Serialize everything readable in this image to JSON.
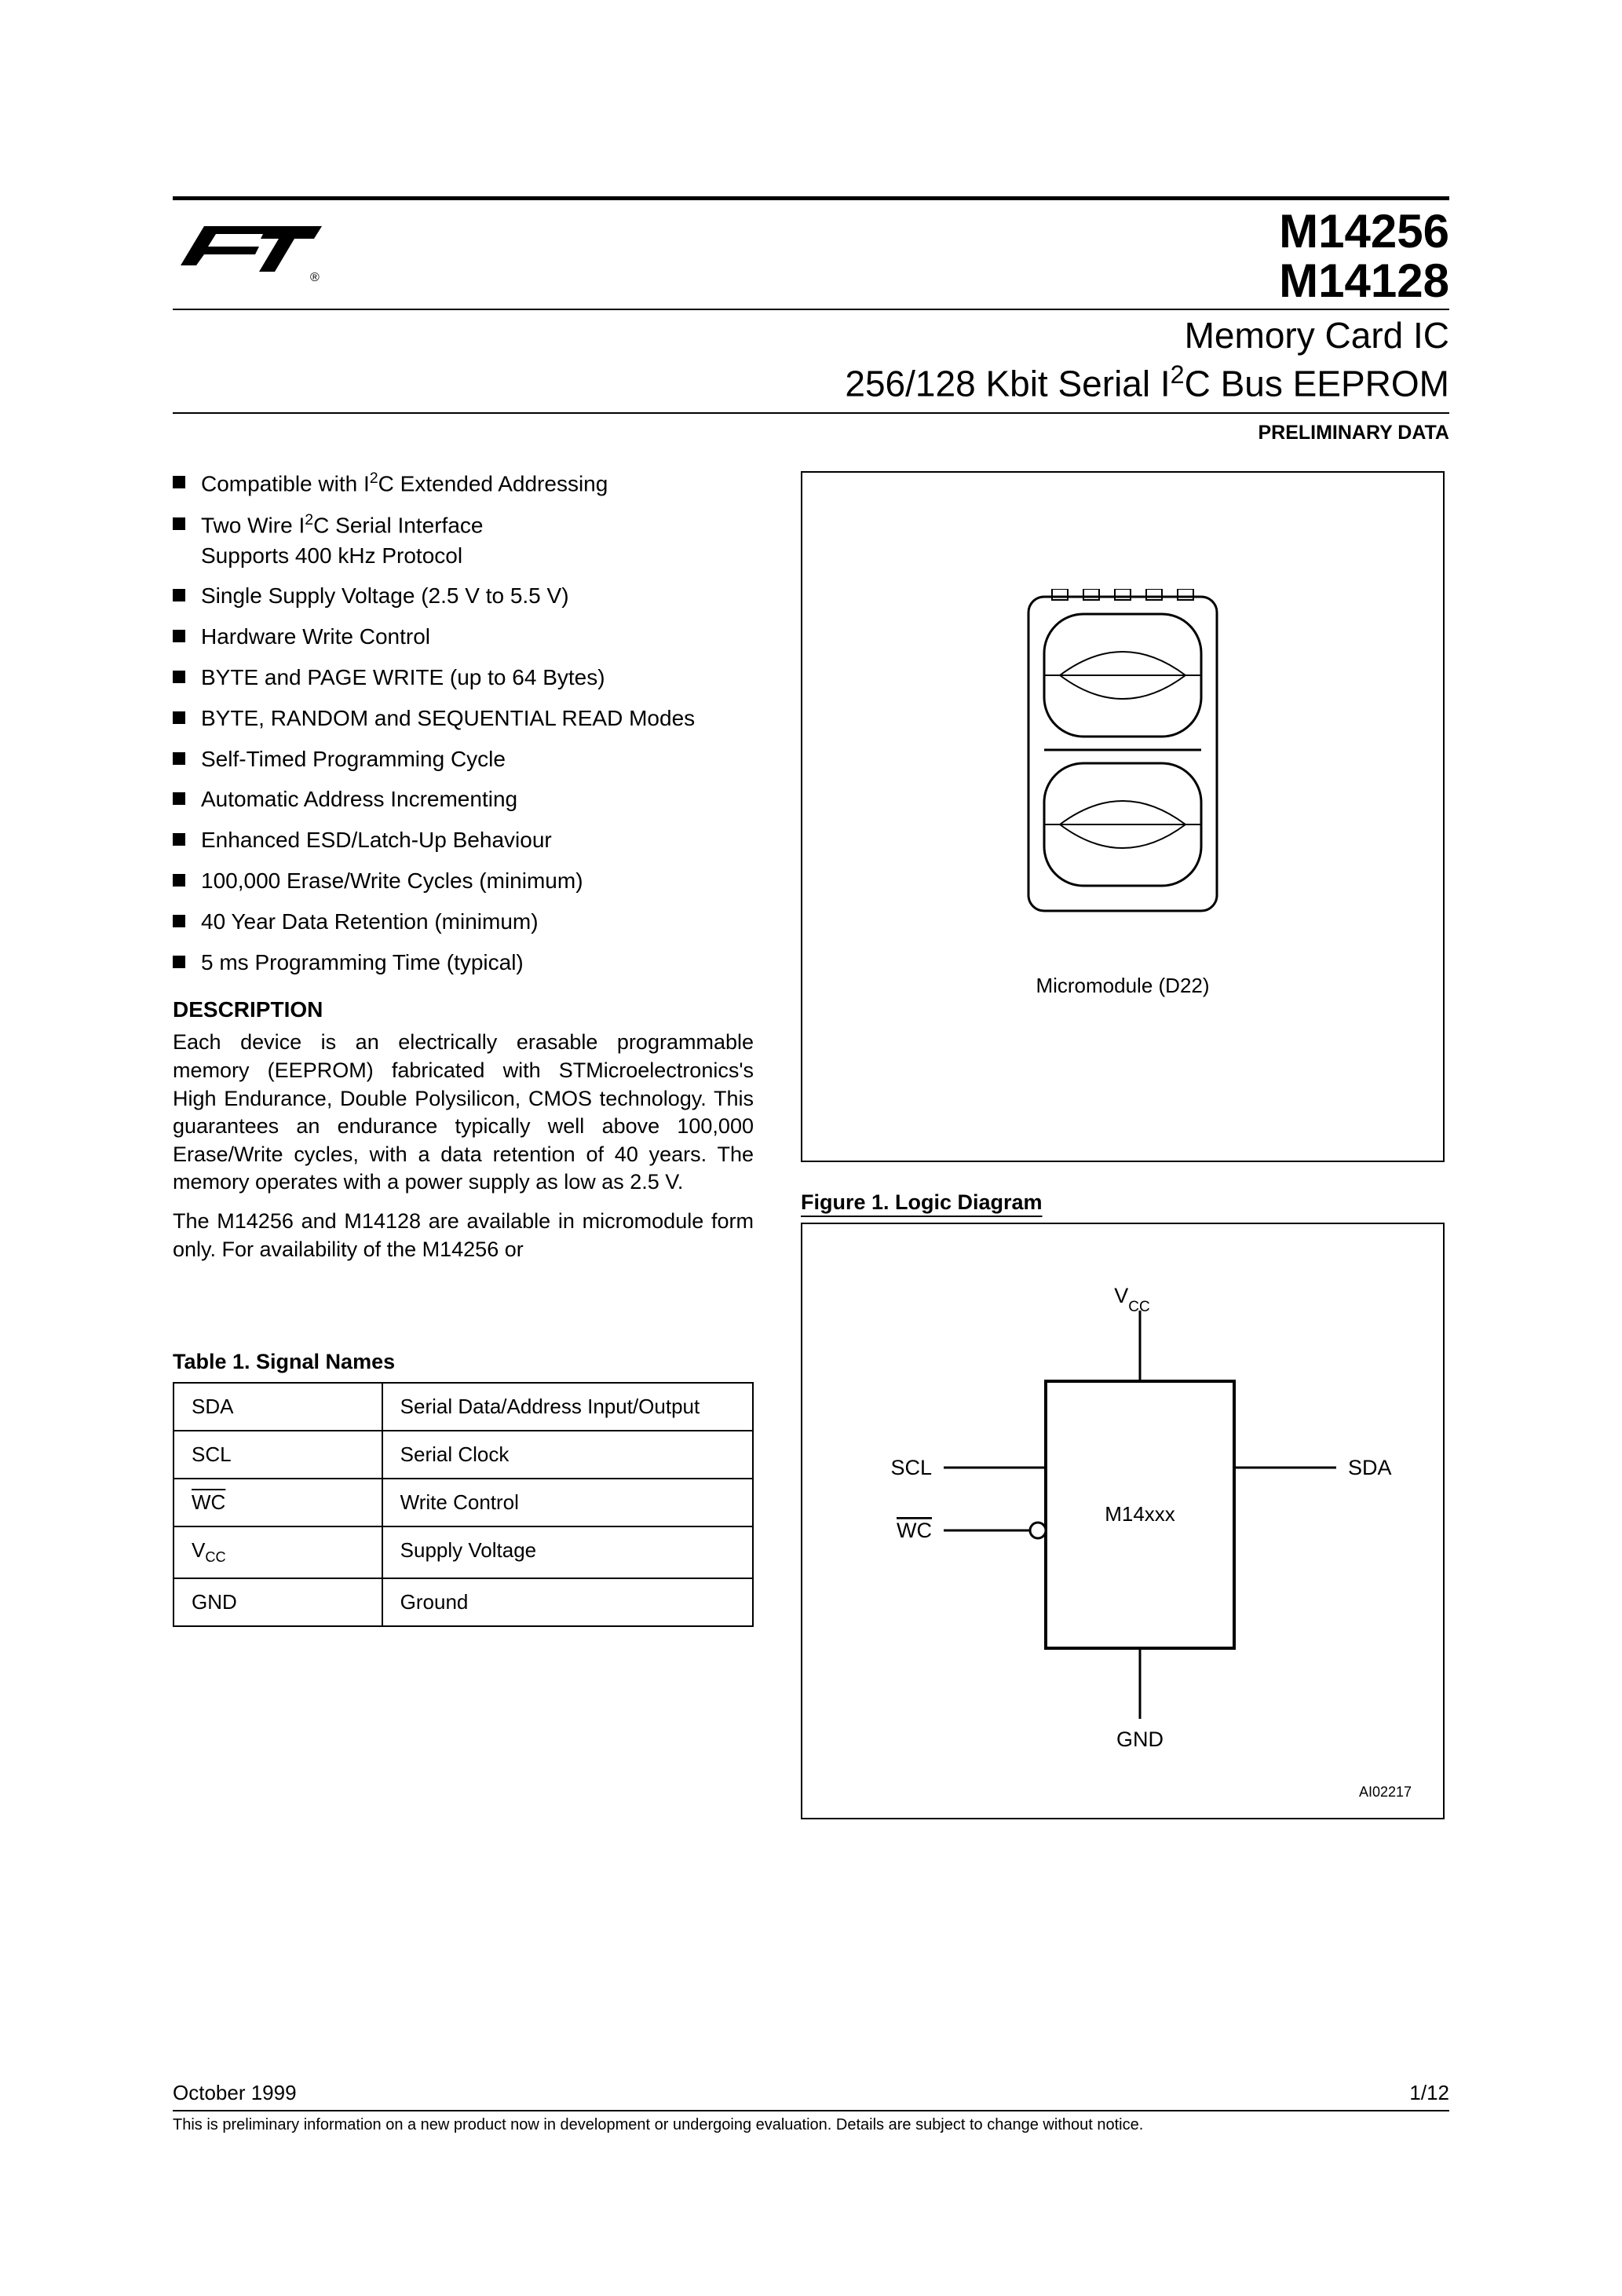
{
  "header": {
    "part1": "M14256",
    "part2": "M14128",
    "title_line1": "Memory Card IC",
    "title_line2_pre": "256/128 Kbit Serial I",
    "title_line2_post": "C Bus EEPROM",
    "prelim": "PRELIMINARY DATA"
  },
  "features": [
    "Compatible with I²C Extended Addressing",
    "Two Wire I²C Serial Interface\nSupports 400 kHz Protocol",
    "Single Supply Voltage (2.5 V to 5.5 V)",
    "Hardware Write Control",
    "BYTE and PAGE WRITE (up to 64 Bytes)",
    "BYTE, RANDOM and SEQUENTIAL READ Modes",
    "Self-Timed Programming Cycle",
    "Automatic Address Incrementing",
    "Enhanced ESD/Latch-Up Behaviour",
    "100,000 Erase/Write Cycles (minimum)",
    "40 Year Data Retention (minimum)",
    "5 ms Programming Time (typical)"
  ],
  "description": {
    "heading": "DESCRIPTION",
    "p1": "Each device is an electrically erasable programmable memory (EEPROM) fabricated with STMicroelectronics's High Endurance, Double Polysilicon, CMOS technology. This guarantees an endurance typically well above 100,000 Erase/Write cycles, with a data retention of 40 years. The memory operates with a power supply as low as 2.5 V.",
    "p2": "The M14256 and M14128 are available in micromodule form only. For availability of the M14256 or"
  },
  "table1": {
    "title": "Table 1. Signal Names",
    "rows": [
      {
        "sig": "SDA",
        "desc": "Serial Data/Address Input/Output"
      },
      {
        "sig": "SCL",
        "desc": "Serial Clock"
      },
      {
        "sig": "WC",
        "desc": "Write Control",
        "overline": true
      },
      {
        "sig": "VCC",
        "desc": "Supply Voltage",
        "sub": "CC",
        "pre": "V"
      },
      {
        "sig": "GND",
        "desc": "Ground"
      }
    ]
  },
  "package": {
    "label": "Micromodule (D22)",
    "pad_color": "#d0d0d0",
    "outline_color": "#000000",
    "bg": "#ffffff"
  },
  "figure1": {
    "title": "Figure 1. Logic Diagram",
    "chip_label": "M14xxx",
    "pins": {
      "top": "V",
      "top_sub": "CC",
      "left1": "SCL",
      "left2": "WC",
      "right": "SDA",
      "bottom": "GND"
    },
    "ai": "AI02217",
    "line_color": "#000000",
    "line_width": 3
  },
  "footer": {
    "date": "October 1999",
    "page": "1/12",
    "note": "This is preliminary information on a new product now in development or undergoing evaluation. Details are subject to change without notice."
  },
  "colors": {
    "text": "#000000",
    "bg": "#ffffff",
    "rule": "#000000"
  }
}
